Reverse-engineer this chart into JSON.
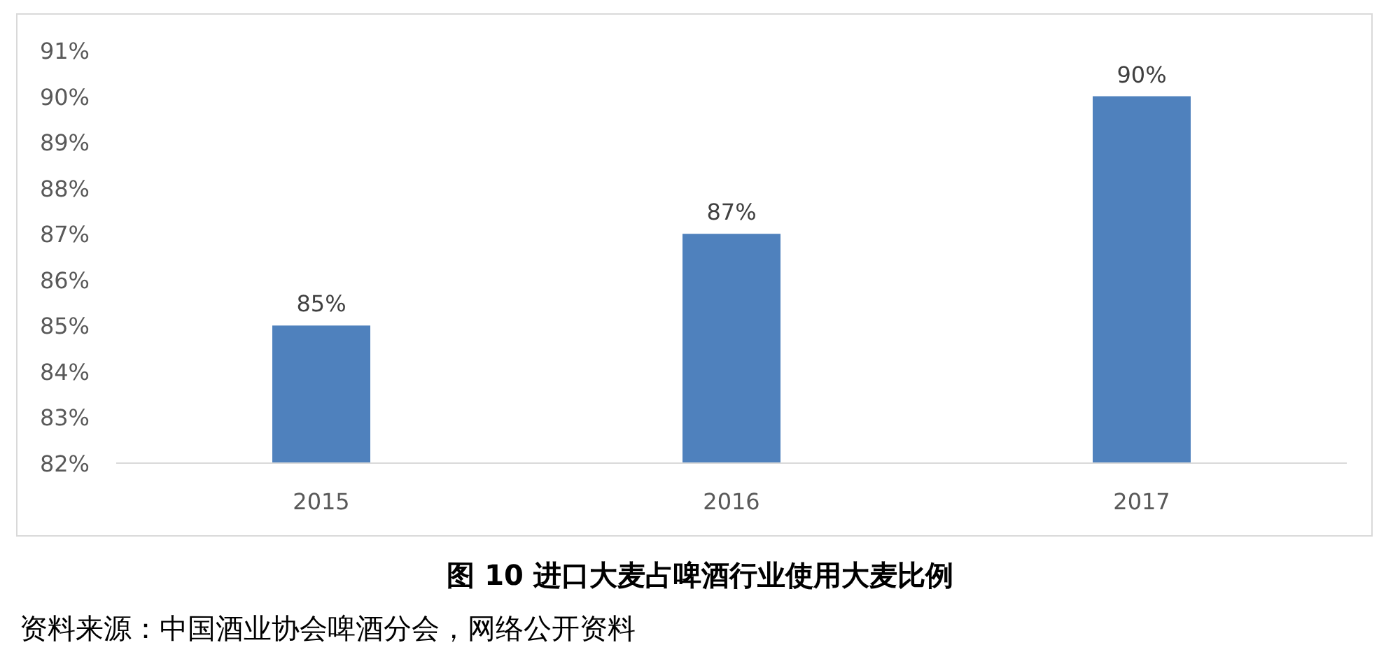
{
  "chart_data": {
    "type": "bar",
    "title": "图 10 进口大麦占啤酒行业使用大麦比例",
    "annotations": [
      "资料来源：中国酒业协会啤酒分会，网络公开资料"
    ],
    "categories": [
      "2015",
      "2016",
      "2017"
    ],
    "values": [
      85,
      87,
      90
    ],
    "value_labels": [
      "85%",
      "87%",
      "90%"
    ],
    "color": "#4f81bd",
    "ylim": [
      82,
      91
    ],
    "yticks": [
      {
        "value": 82,
        "label": "82%"
      },
      {
        "value": 83,
        "label": "83%"
      },
      {
        "value": 84,
        "label": "84%"
      },
      {
        "value": 85,
        "label": "85%"
      },
      {
        "value": 86,
        "label": "86%"
      },
      {
        "value": 87,
        "label": "87%"
      },
      {
        "value": 88,
        "label": "88%"
      },
      {
        "value": 89,
        "label": "89%"
      },
      {
        "value": 90,
        "label": "90%"
      },
      {
        "value": 91,
        "label": "91%"
      }
    ]
  }
}
